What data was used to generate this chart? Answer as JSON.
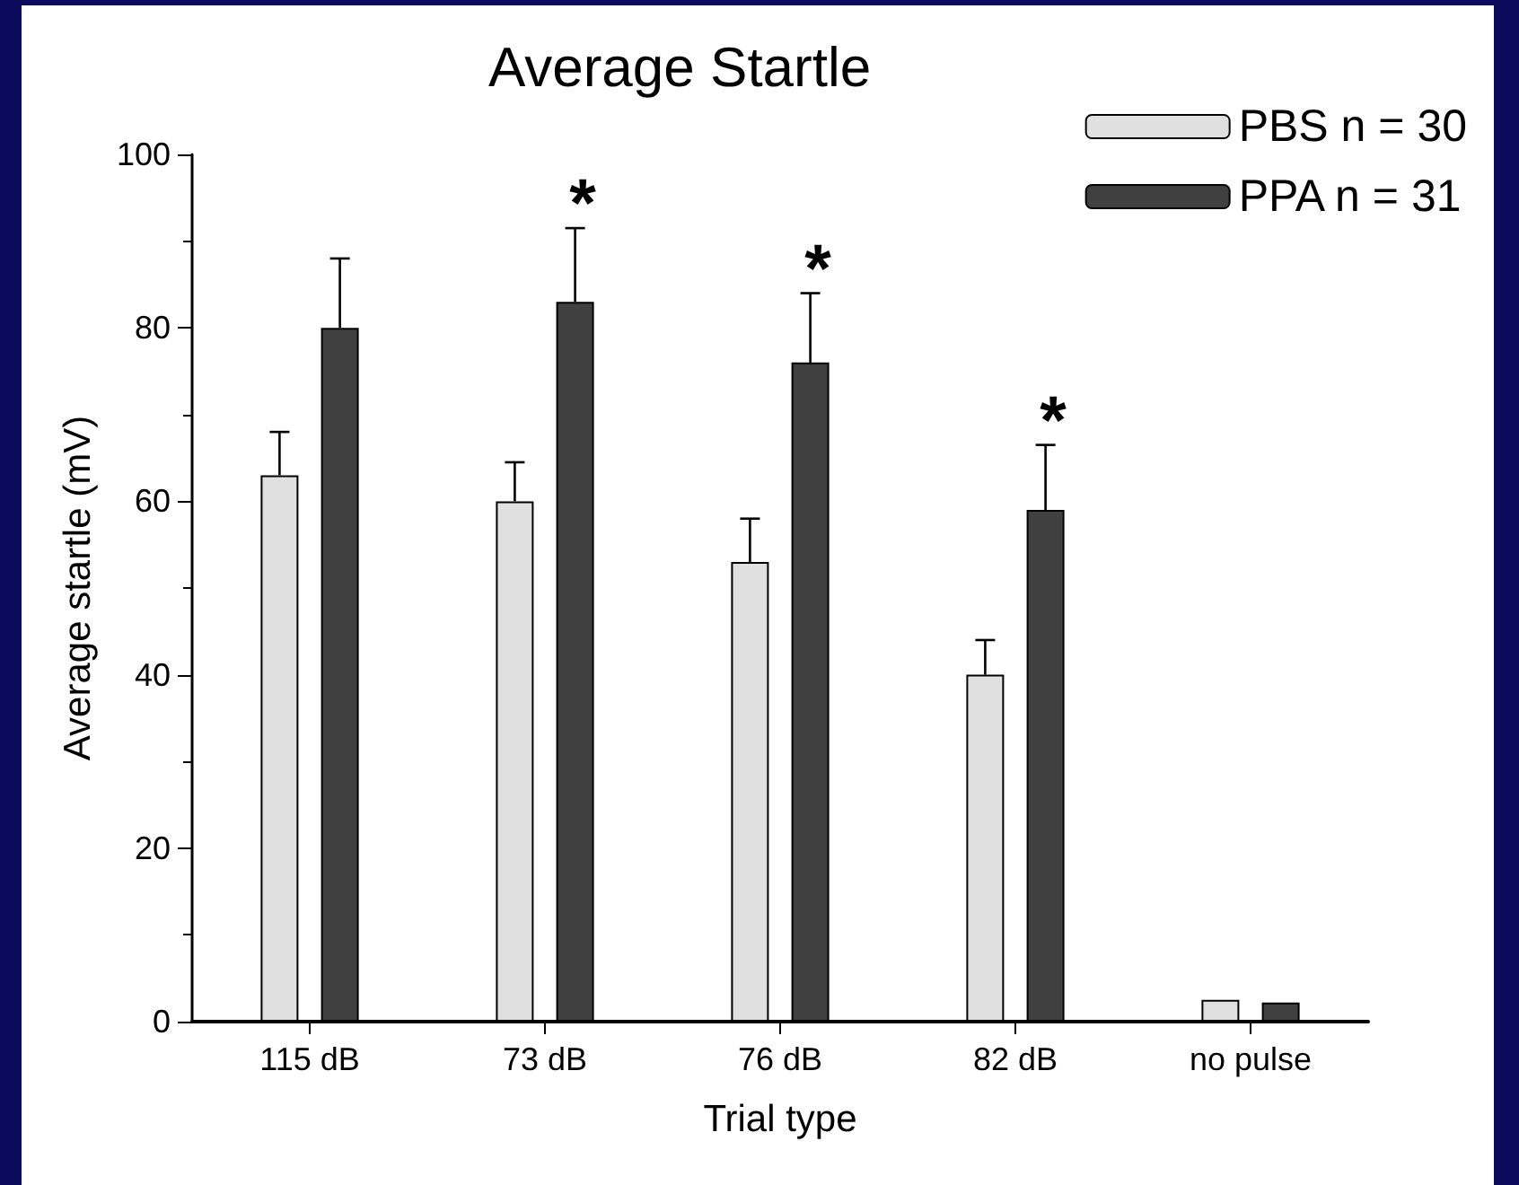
{
  "chart_data": {
    "type": "bar",
    "title": "Average Startle",
    "xlabel": "Trial type",
    "ylabel": "Average startle (mV)",
    "categories": [
      "115 dB",
      "73 dB",
      "76 dB",
      "82 dB",
      "no pulse"
    ],
    "series": [
      {
        "name": "PBS n = 30",
        "color": "#e0e0e0",
        "values": [
          63,
          60,
          53,
          40,
          2.5
        ],
        "errors": [
          5,
          4.5,
          5,
          4,
          null
        ]
      },
      {
        "name": "PPA n = 31",
        "color": "#404040",
        "values": [
          80,
          83,
          76,
          59,
          2.2
        ],
        "errors": [
          8,
          8.5,
          8,
          7.5,
          null
        ]
      }
    ],
    "ylim": [
      0,
      100
    ],
    "yticks": [
      0,
      20,
      40,
      60,
      80,
      100
    ],
    "grid": false,
    "legend": "top right",
    "annotations": [
      "*",
      "*",
      "*"
    ]
  }
}
